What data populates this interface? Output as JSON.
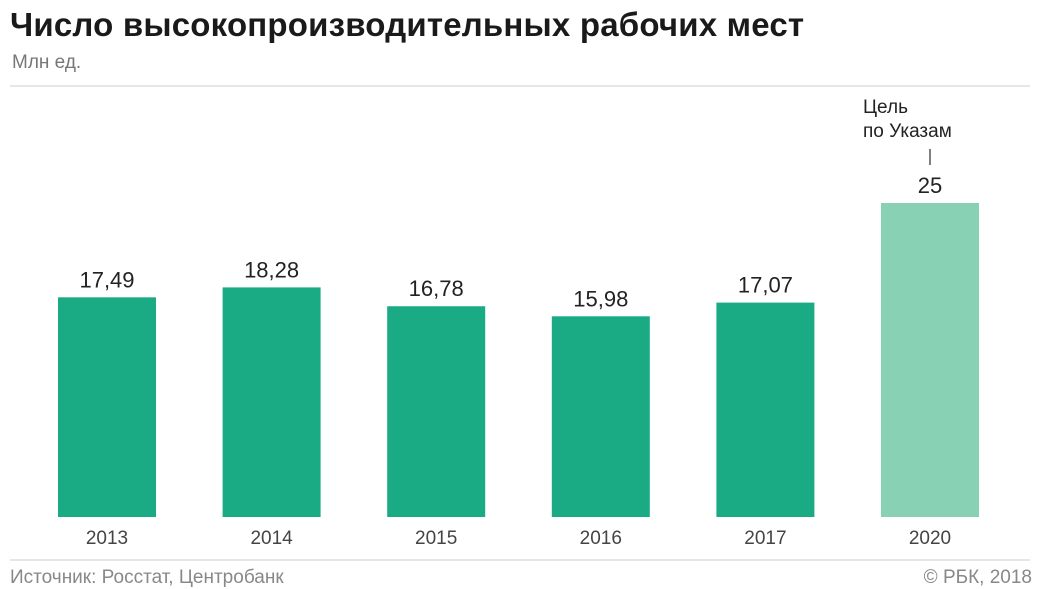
{
  "chart_data": {
    "type": "bar",
    "title": "Число высокопроизводительных рабочих мест",
    "subtitle": "Млн ед.",
    "categories": [
      "2013",
      "2014",
      "2015",
      "2016",
      "2017",
      "2020"
    ],
    "values": [
      17.49,
      18.28,
      16.78,
      15.98,
      17.07,
      25
    ],
    "value_labels": [
      "17,49",
      "18,28",
      "16,78",
      "15,98",
      "17,07",
      "25"
    ],
    "ylim": [
      0,
      25
    ],
    "grid": false,
    "annotation": {
      "category": "2020",
      "lines": [
        "Цель",
        "по Указам"
      ]
    },
    "colors": {
      "actual": "#1aab84",
      "target": "#88d1b4"
    }
  },
  "footer": {
    "source": "Источник: Росстат, Центробанк",
    "copyright": "© РБК, 2018"
  }
}
